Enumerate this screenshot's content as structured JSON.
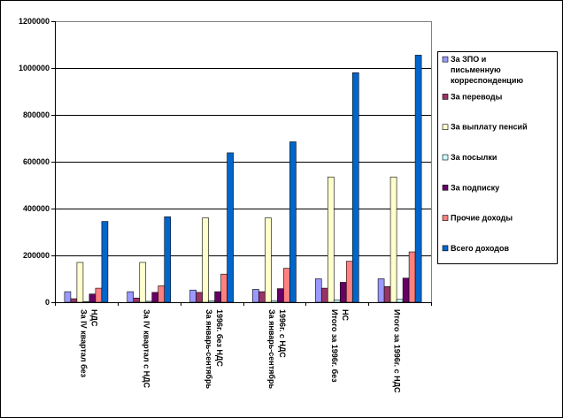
{
  "chart_data": {
    "type": "bar",
    "categories": [
      [
        "За IV квартал без",
        "НДС"
      ],
      [
        "За IV квартал с НДС"
      ],
      [
        "За январь-сентябрь",
        "1996г. без НДС"
      ],
      [
        "За январь-сентябрь",
        "1996г. с НДС"
      ],
      [
        "Итого за 1996г. без",
        "НС"
      ],
      [
        "Итого за 1996г. с НДС"
      ]
    ],
    "series": [
      {
        "name": "За ЗПО и письменную корреспонденцию",
        "legend_lines": [
          "За ЗПО и",
          "письменную",
          "корреспонденцию"
        ],
        "color": "#9999ff",
        "values": [
          45000,
          45000,
          52000,
          55000,
          100000,
          100000
        ]
      },
      {
        "name": "За переводы",
        "legend_lines": [
          "За переводы"
        ],
        "color": "#993366",
        "values": [
          15000,
          18000,
          42000,
          45000,
          60000,
          67000
        ]
      },
      {
        "name": "За выплату пенсий",
        "legend_lines": [
          "За выплату пенсий"
        ],
        "color": "#ffffcc",
        "values": [
          170000,
          170000,
          360000,
          360000,
          535000,
          535000
        ]
      },
      {
        "name": "За посылки",
        "legend_lines": [
          "За посылки"
        ],
        "color": "#ccffff",
        "values": [
          3000,
          4000,
          6000,
          7000,
          10000,
          12000
        ]
      },
      {
        "name": "За подписку",
        "legend_lines": [
          "За подписку"
        ],
        "color": "#660066",
        "values": [
          35000,
          42000,
          45000,
          58000,
          85000,
          103000
        ]
      },
      {
        "name": "Прочие доходы",
        "legend_lines": [
          "Прочие доходы"
        ],
        "color": "#ff8080",
        "values": [
          60000,
          70000,
          120000,
          145000,
          175000,
          215000
        ]
      },
      {
        "name": "Всего доходов",
        "legend_lines": [
          "Всего доходов"
        ],
        "color": "#0066cc",
        "values": [
          345000,
          365000,
          638000,
          685000,
          980000,
          1055000
        ]
      }
    ],
    "y_ticks": [
      "0",
      "200000",
      "400000",
      "600000",
      "800000",
      "1000000",
      "1200000"
    ],
    "ylim": [
      0,
      1200000
    ],
    "grid": true,
    "legend_position": "right",
    "title": "",
    "xlabel": "",
    "ylabel": ""
  }
}
